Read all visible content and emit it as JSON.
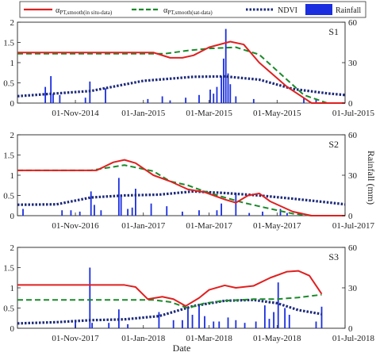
{
  "chart_data": {
    "type": "line",
    "legend": {
      "placement": "top",
      "items": [
        {
          "key": "in_situ",
          "symbol": "α",
          "sub": "PT,smooth(in situ-data)",
          "color": "#e02020",
          "style": "solid"
        },
        {
          "key": "sat",
          "symbol": "α",
          "sub": "PT,smooth(sat-data)",
          "color": "#1a8a2a",
          "style": "dashed"
        },
        {
          "key": "ndvi",
          "label": "NDVI",
          "color": "#1c2a7a",
          "style": "dotted"
        },
        {
          "key": "rain",
          "label": "Rainfall",
          "color": "#1a2ee0",
          "style": "bar"
        }
      ]
    },
    "xlabel": "Date",
    "ylabel_right": "Rainfall (mm)",
    "ylim_left": [
      0,
      2
    ],
    "yticks_left": [
      "0",
      "0.5",
      "1",
      "1.5",
      "2"
    ],
    "ylim_right": [
      0,
      60
    ],
    "yticks_right": [
      "0",
      "30",
      "60"
    ],
    "ytick_right_values": [
      0,
      30,
      60
    ],
    "ytick_left_values": [
      0,
      0.5,
      1,
      1.5,
      2
    ],
    "panels": [
      {
        "id": "S1",
        "label": "S1",
        "xlim": [
          "2014-09-10",
          "2015-07-01"
        ],
        "xticks": [
          "2014-11-01",
          "2015-01-01",
          "2015-03-01",
          "2015-05-01",
          "2015-07-01"
        ],
        "xtick_labels": [
          "01-Nov-2014",
          "01-Jan-2015",
          "01-Mar-2015",
          "01-May-2015",
          "01-Jul-2015"
        ],
        "in_situ": [
          [
            "2014-09-10",
            1.25
          ],
          [
            "2014-12-01",
            1.25
          ],
          [
            "2015-01-10",
            1.25
          ],
          [
            "2015-01-25",
            1.12
          ],
          [
            "2015-02-05",
            1.12
          ],
          [
            "2015-02-15",
            1.18
          ],
          [
            "2015-03-01",
            1.38
          ],
          [
            "2015-03-20",
            1.52
          ],
          [
            "2015-04-01",
            1.45
          ],
          [
            "2015-04-15",
            1.0
          ],
          [
            "2015-05-10",
            0.4
          ],
          [
            "2015-06-01",
            0.0
          ],
          [
            "2015-07-01",
            0.0
          ]
        ],
        "sat": [
          [
            "2014-09-10",
            1.22
          ],
          [
            "2014-11-15",
            1.22
          ],
          [
            "2015-01-20",
            1.22
          ],
          [
            "2015-02-10",
            1.3
          ],
          [
            "2015-03-01",
            1.35
          ],
          [
            "2015-03-25",
            1.38
          ],
          [
            "2015-04-15",
            1.2
          ],
          [
            "2015-05-01",
            0.8
          ],
          [
            "2015-05-25",
            0.2
          ],
          [
            "2015-06-15",
            0.0
          ],
          [
            "2015-07-01",
            0.0
          ]
        ],
        "ndvi": [
          [
            "2014-09-10",
            0.17
          ],
          [
            "2014-11-15",
            0.3
          ],
          [
            "2015-01-01",
            0.55
          ],
          [
            "2015-02-15",
            0.65
          ],
          [
            "2015-03-15",
            0.66
          ],
          [
            "2015-04-15",
            0.58
          ],
          [
            "2015-05-15",
            0.35
          ],
          [
            "2015-06-15",
            0.24
          ],
          [
            "2015-07-01",
            0.2
          ]
        ],
        "rain": [
          [
            "2014-10-05",
            12
          ],
          [
            "2014-10-10",
            20
          ],
          [
            "2014-10-12",
            7
          ],
          [
            "2014-10-18",
            6
          ],
          [
            "2014-11-10",
            4
          ],
          [
            "2014-11-14",
            16
          ],
          [
            "2014-11-28",
            11
          ],
          [
            "2015-01-05",
            3
          ],
          [
            "2015-01-18",
            5
          ],
          [
            "2015-01-25",
            2
          ],
          [
            "2015-02-08",
            4
          ],
          [
            "2015-02-20",
            6
          ],
          [
            "2015-03-02",
            10
          ],
          [
            "2015-03-05",
            7
          ],
          [
            "2015-03-08",
            12
          ],
          [
            "2015-03-12",
            20
          ],
          [
            "2015-03-14",
            33
          ],
          [
            "2015-03-16",
            55
          ],
          [
            "2015-03-18",
            22
          ],
          [
            "2015-03-20",
            14
          ],
          [
            "2015-03-25",
            5
          ],
          [
            "2015-04-10",
            3
          ],
          [
            "2015-05-25",
            4
          ],
          [
            "2015-06-05",
            3
          ]
        ]
      },
      {
        "id": "S2",
        "label": "S2",
        "xlim": [
          "2016-09-10",
          "2017-07-01"
        ],
        "xticks": [
          "2016-11-01",
          "2017-01-01",
          "2017-03-01",
          "2017-05-01",
          "2017-07-01"
        ],
        "xtick_labels": [
          "01-Nov-2016",
          "01-Jan-2017",
          "01-Mar-2017",
          "01-May-2017",
          "01-Jul-2017"
        ],
        "in_situ": [
          [
            "2016-09-10",
            1.12
          ],
          [
            "2016-11-01",
            1.12
          ],
          [
            "2016-11-20",
            1.12
          ],
          [
            "2016-12-05",
            1.32
          ],
          [
            "2016-12-15",
            1.38
          ],
          [
            "2016-12-25",
            1.3
          ],
          [
            "2017-01-10",
            1.0
          ],
          [
            "2017-01-25",
            0.85
          ],
          [
            "2017-02-10",
            0.65
          ],
          [
            "2017-02-25",
            0.58
          ],
          [
            "2017-03-15",
            0.4
          ],
          [
            "2017-03-25",
            0.32
          ],
          [
            "2017-04-05",
            0.5
          ],
          [
            "2017-04-15",
            0.55
          ],
          [
            "2017-04-25",
            0.35
          ],
          [
            "2017-05-15",
            0.1
          ],
          [
            "2017-06-01",
            0.0
          ],
          [
            "2017-07-01",
            0.0
          ]
        ],
        "sat": [
          [
            "2016-09-10",
            1.12
          ],
          [
            "2016-10-15",
            1.12
          ],
          [
            "2016-11-15",
            1.12
          ],
          [
            "2016-12-15",
            1.25
          ],
          [
            "2017-01-10",
            1.1
          ],
          [
            "2017-01-25",
            0.85
          ],
          [
            "2017-02-10",
            0.75
          ],
          [
            "2017-02-25",
            0.6
          ],
          [
            "2017-03-15",
            0.45
          ],
          [
            "2017-04-01",
            0.32
          ],
          [
            "2017-04-20",
            0.2
          ],
          [
            "2017-05-15",
            0.05
          ],
          [
            "2017-06-01",
            0.0
          ],
          [
            "2017-07-01",
            0.0
          ]
        ],
        "ndvi": [
          [
            "2016-09-10",
            0.27
          ],
          [
            "2016-10-15",
            0.28
          ],
          [
            "2016-11-15",
            0.45
          ],
          [
            "2016-12-15",
            0.5
          ],
          [
            "2017-01-15",
            0.52
          ],
          [
            "2017-02-15",
            0.6
          ],
          [
            "2017-03-15",
            0.56
          ],
          [
            "2017-04-15",
            0.5
          ],
          [
            "2017-05-15",
            0.42
          ],
          [
            "2017-06-15",
            0.33
          ],
          [
            "2017-07-01",
            0.28
          ]
        ],
        "rain": [
          [
            "2016-09-15",
            5
          ],
          [
            "2016-10-20",
            4
          ],
          [
            "2016-10-28",
            4
          ],
          [
            "2016-11-05",
            3
          ],
          [
            "2016-11-15",
            18
          ],
          [
            "2016-11-18",
            8
          ],
          [
            "2016-11-24",
            4
          ],
          [
            "2016-12-10",
            28
          ],
          [
            "2016-12-12",
            15
          ],
          [
            "2016-12-18",
            5
          ],
          [
            "2016-12-22",
            6
          ],
          [
            "2016-12-25",
            20
          ],
          [
            "2017-01-08",
            9
          ],
          [
            "2017-01-22",
            7
          ],
          [
            "2017-02-05",
            3
          ],
          [
            "2017-02-20",
            4
          ],
          [
            "2017-03-08",
            4
          ],
          [
            "2017-03-12",
            9
          ],
          [
            "2017-03-25",
            17
          ],
          [
            "2017-04-06",
            2
          ],
          [
            "2017-04-18",
            3
          ],
          [
            "2017-05-04",
            5
          ],
          [
            "2017-05-10",
            2
          ]
        ]
      },
      {
        "id": "S3",
        "label": "S3",
        "xlim": [
          "2017-09-10",
          "2018-07-01"
        ],
        "xticks": [
          "2017-11-01",
          "2018-01-01",
          "2018-03-01",
          "2018-05-01",
          "2018-07-01"
        ],
        "xtick_labels": [
          "01-Nov-2017",
          "01-Jan-2018",
          "01-Mar-2018",
          "01-May-2018",
          "01-Jul-2018"
        ],
        "in_situ": [
          [
            "2017-09-10",
            1.07
          ],
          [
            "2017-11-01",
            1.07
          ],
          [
            "2017-12-15",
            1.07
          ],
          [
            "2017-12-25",
            1.02
          ],
          [
            "2018-01-05",
            0.72
          ],
          [
            "2018-01-18",
            0.78
          ],
          [
            "2018-01-28",
            0.72
          ],
          [
            "2018-02-08",
            0.55
          ],
          [
            "2018-02-20",
            0.75
          ],
          [
            "2018-03-01",
            0.95
          ],
          [
            "2018-03-15",
            1.06
          ],
          [
            "2018-03-25",
            1.0
          ],
          [
            "2018-04-10",
            1.05
          ],
          [
            "2018-04-25",
            1.25
          ],
          [
            "2018-05-10",
            1.4
          ],
          [
            "2018-05-20",
            1.42
          ],
          [
            "2018-05-30",
            1.3
          ],
          [
            "2018-06-10",
            0.85
          ]
        ],
        "sat": [
          [
            "2017-09-10",
            0.7
          ],
          [
            "2017-11-01",
            0.7
          ],
          [
            "2017-12-15",
            0.7
          ],
          [
            "2017-12-25",
            0.7
          ],
          [
            "2018-01-10",
            0.7
          ],
          [
            "2018-01-25",
            0.65
          ],
          [
            "2018-02-10",
            0.5
          ],
          [
            "2018-02-25",
            0.62
          ],
          [
            "2018-03-15",
            0.68
          ],
          [
            "2018-04-10",
            0.72
          ],
          [
            "2018-05-01",
            0.72
          ],
          [
            "2018-05-20",
            0.76
          ],
          [
            "2018-06-10",
            0.83
          ]
        ],
        "ndvi": [
          [
            "2017-09-10",
            0.12
          ],
          [
            "2017-10-15",
            0.15
          ],
          [
            "2017-11-15",
            0.2
          ],
          [
            "2017-12-15",
            0.22
          ],
          [
            "2018-01-15",
            0.3
          ],
          [
            "2018-02-15",
            0.55
          ],
          [
            "2018-03-15",
            0.68
          ],
          [
            "2018-04-10",
            0.7
          ],
          [
            "2018-05-01",
            0.62
          ],
          [
            "2018-05-20",
            0.45
          ],
          [
            "2018-06-10",
            0.35
          ]
        ],
        "rain": [
          [
            "2017-11-01",
            5
          ],
          [
            "2017-11-14",
            45
          ],
          [
            "2017-11-16",
            4
          ],
          [
            "2017-12-01",
            4
          ],
          [
            "2017-12-10",
            14
          ],
          [
            "2017-12-18",
            3
          ],
          [
            "2018-01-15",
            12
          ],
          [
            "2018-01-28",
            6
          ],
          [
            "2018-02-05",
            6
          ],
          [
            "2018-02-10",
            16
          ],
          [
            "2018-02-14",
            10
          ],
          [
            "2018-02-20",
            18
          ],
          [
            "2018-02-25",
            9
          ],
          [
            "2018-03-05",
            5
          ],
          [
            "2018-03-10",
            5
          ],
          [
            "2018-03-18",
            8
          ],
          [
            "2018-03-25",
            6
          ],
          [
            "2018-04-02",
            4
          ],
          [
            "2018-04-12",
            5
          ],
          [
            "2018-04-20",
            17
          ],
          [
            "2018-04-24",
            7
          ],
          [
            "2018-04-28",
            12
          ],
          [
            "2018-05-02",
            34
          ],
          [
            "2018-05-08",
            15
          ],
          [
            "2018-05-12",
            10
          ],
          [
            "2018-06-05",
            5
          ],
          [
            "2018-06-10",
            16
          ]
        ]
      }
    ]
  }
}
